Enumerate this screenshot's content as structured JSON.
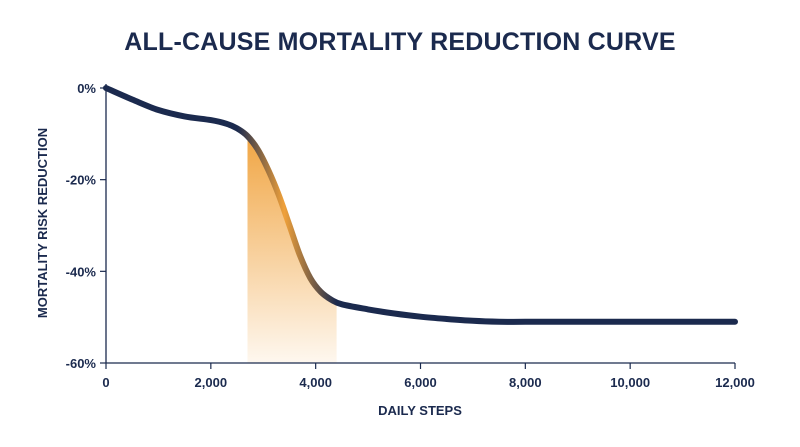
{
  "chart_data": {
    "type": "line",
    "title": "ALL-CAUSE MORTALITY REDUCTION CURVE",
    "xlabel": "DAILY STEPS",
    "ylabel": "MORTALITY RISK REDUCTION",
    "xlim": [
      0,
      12000
    ],
    "ylim": [
      -60,
      0
    ],
    "x_ticks": [
      "0",
      "2,000",
      "4,000",
      "6,000",
      "8,000",
      "10,000",
      "12,000"
    ],
    "y_ticks": [
      "0%",
      "-20%",
      "-40%",
      "-60%"
    ],
    "grid": false,
    "series": [
      {
        "x": [
          0,
          500,
          1000,
          1500,
          2000,
          2300,
          2500,
          2700,
          2900,
          3100,
          3300,
          3500,
          3700,
          3900,
          4100,
          4300,
          4500,
          5000,
          5500,
          6000,
          6500,
          7000,
          7500,
          8000,
          9000,
          10000,
          11000,
          12000
        ],
        "y": [
          0,
          -2.5,
          -4.8,
          -6.2,
          -7.0,
          -7.8,
          -8.8,
          -10.5,
          -13.5,
          -18,
          -23.5,
          -30,
          -36.5,
          -41.5,
          -44.5,
          -46.2,
          -47.2,
          -48.3,
          -49.2,
          -49.9,
          -50.4,
          -50.8,
          -51.0,
          -51.0,
          -51.0,
          -51.0,
          -51.0,
          -51.0
        ]
      }
    ],
    "highlight": {
      "x_start": 2700,
      "x_end": 4400
    },
    "colors": {
      "line": "#1b2a4e",
      "line_highlight": "#f0a13a",
      "fill": "#f0a13a",
      "text": "#1b2a4e"
    }
  }
}
